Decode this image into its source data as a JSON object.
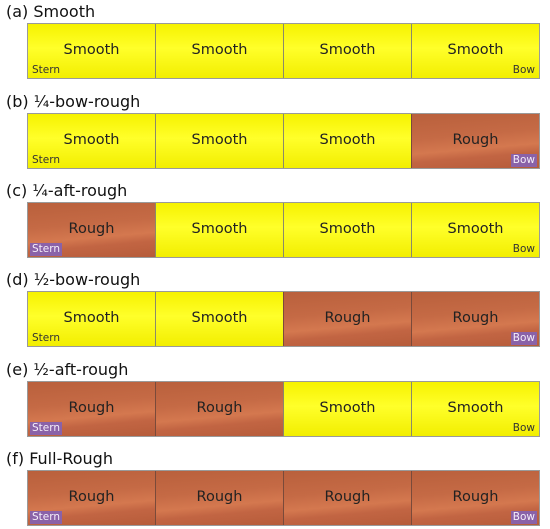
{
  "configs": [
    {
      "title": "(a) Smooth",
      "segments": [
        {
          "label": "Smooth",
          "state": "smooth"
        },
        {
          "label": "Smooth",
          "state": "smooth"
        },
        {
          "label": "Smooth",
          "state": "smooth"
        },
        {
          "label": "Smooth",
          "state": "smooth"
        }
      ]
    },
    {
      "title": "(b) ¼-bow-rough",
      "segments": [
        {
          "label": "Smooth",
          "state": "smooth"
        },
        {
          "label": "Smooth",
          "state": "smooth"
        },
        {
          "label": "Smooth",
          "state": "smooth"
        },
        {
          "label": "Rough",
          "state": "rough"
        }
      ]
    },
    {
      "title": "(c) ¼-aft-rough",
      "segments": [
        {
          "label": "Rough",
          "state": "rough"
        },
        {
          "label": "Smooth",
          "state": "smooth"
        },
        {
          "label": "Smooth",
          "state": "smooth"
        },
        {
          "label": "Smooth",
          "state": "smooth"
        }
      ]
    },
    {
      "title": "(d) ½-bow-rough",
      "segments": [
        {
          "label": "Smooth",
          "state": "smooth"
        },
        {
          "label": "Smooth",
          "state": "smooth"
        },
        {
          "label": "Rough",
          "state": "rough"
        },
        {
          "label": "Rough",
          "state": "rough"
        }
      ]
    },
    {
      "title": "(e) ½-aft-rough",
      "segments": [
        {
          "label": "Rough",
          "state": "rough"
        },
        {
          "label": "Rough",
          "state": "rough"
        },
        {
          "label": "Smooth",
          "state": "smooth"
        },
        {
          "label": "Smooth",
          "state": "smooth"
        }
      ]
    },
    {
      "title": "(f) Full-Rough",
      "segments": [
        {
          "label": "Rough",
          "state": "rough"
        },
        {
          "label": "Rough",
          "state": "rough"
        },
        {
          "label": "Rough",
          "state": "rough"
        },
        {
          "label": "Rough",
          "state": "rough"
        }
      ]
    }
  ],
  "labels": {
    "stern": "Stern",
    "bow": "Bow"
  },
  "colors": {
    "smooth": "#ffff00",
    "rough": "#c56a45",
    "rough_end_label_bg": "#8a62a8"
  }
}
